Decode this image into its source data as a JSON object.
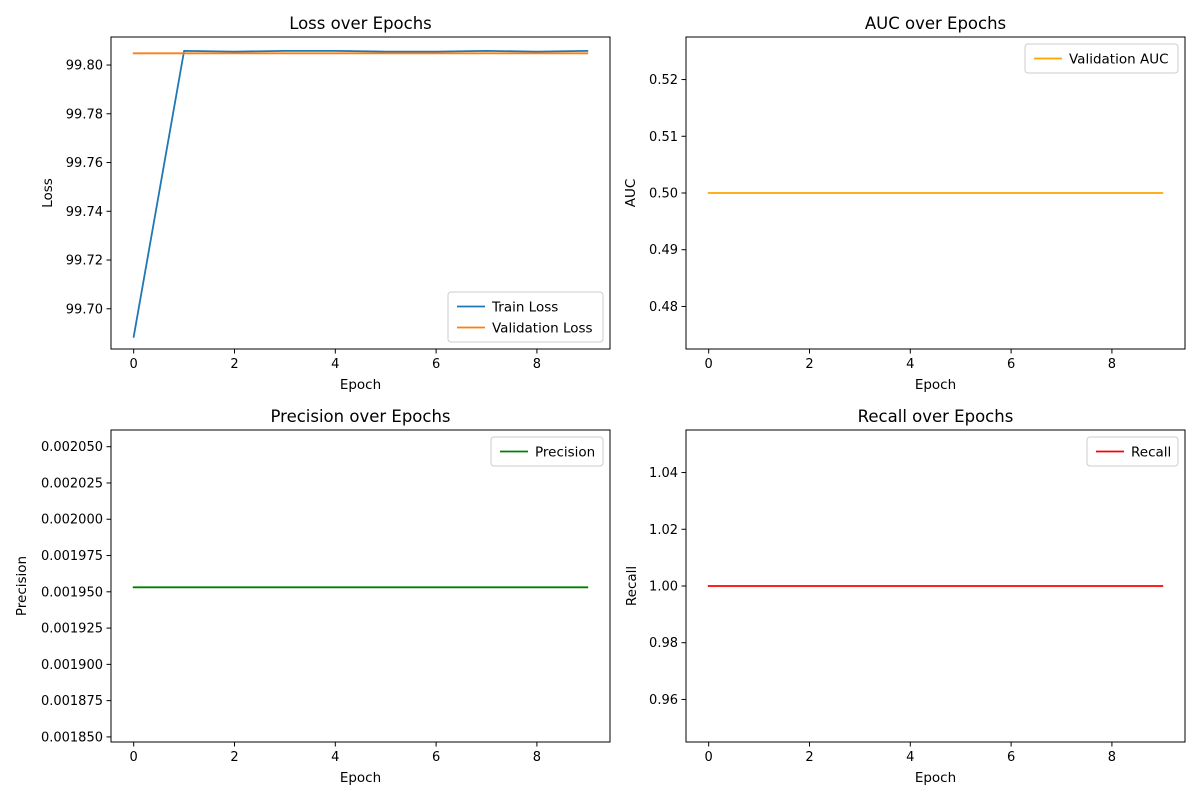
{
  "chart_data": [
    {
      "type": "line",
      "title": "Loss over Epochs",
      "xlabel": "Epoch",
      "ylabel": "Loss",
      "xlim": [
        -0.45,
        9.45
      ],
      "ylim": [
        99.6835,
        99.8115
      ],
      "xticks": [
        0,
        2,
        4,
        6,
        8
      ],
      "xtick_labels": [
        "0",
        "2",
        "4",
        "6",
        "8"
      ],
      "yticks": [
        99.7,
        99.72,
        99.74,
        99.76,
        99.78,
        99.8
      ],
      "ytick_labels": [
        "99.70",
        "99.72",
        "99.74",
        "99.76",
        "99.78",
        "99.80"
      ],
      "legend_position": "lower-right",
      "grid": false,
      "x": [
        0,
        1,
        2,
        3,
        4,
        5,
        6,
        7,
        8,
        9
      ],
      "series": [
        {
          "name": "Train Loss",
          "color": "#1f77b4",
          "values": [
            99.6885,
            99.8058,
            99.8055,
            99.8058,
            99.8058,
            99.8055,
            99.8055,
            99.8058,
            99.8055,
            99.8058
          ]
        },
        {
          "name": "Validation Loss",
          "color": "#ff7f0e",
          "values": [
            99.8048,
            99.8048,
            99.8048,
            99.8048,
            99.8048,
            99.8048,
            99.8048,
            99.8048,
            99.8048,
            99.8048
          ]
        }
      ]
    },
    {
      "type": "line",
      "title": "AUC over Epochs",
      "xlabel": "Epoch",
      "ylabel": "AUC",
      "xlim": [
        -0.45,
        9.45
      ],
      "ylim": [
        0.4725,
        0.5275
      ],
      "xticks": [
        0,
        2,
        4,
        6,
        8
      ],
      "xtick_labels": [
        "0",
        "2",
        "4",
        "6",
        "8"
      ],
      "yticks": [
        0.48,
        0.49,
        0.5,
        0.51,
        0.52
      ],
      "ytick_labels": [
        "0.48",
        "0.49",
        "0.50",
        "0.51",
        "0.52"
      ],
      "legend_position": "upper-right",
      "grid": false,
      "x": [
        0,
        1,
        2,
        3,
        4,
        5,
        6,
        7,
        8,
        9
      ],
      "series": [
        {
          "name": "Validation AUC",
          "color": "#ffa500",
          "values": [
            0.5,
            0.5,
            0.5,
            0.5,
            0.5,
            0.5,
            0.5,
            0.5,
            0.5,
            0.5
          ]
        }
      ]
    },
    {
      "type": "line",
      "title": "Precision over Epochs",
      "xlabel": "Epoch",
      "ylabel": "Precision",
      "xlim": [
        -0.45,
        9.45
      ],
      "ylim": [
        0.0018465,
        0.0020615
      ],
      "xticks": [
        0,
        2,
        4,
        6,
        8
      ],
      "xtick_labels": [
        "0",
        "2",
        "4",
        "6",
        "8"
      ],
      "yticks": [
        0.00185,
        0.001875,
        0.0019,
        0.001925,
        0.00195,
        0.001975,
        0.002,
        0.002025,
        0.00205
      ],
      "ytick_labels": [
        "0.001850",
        "0.001875",
        "0.001900",
        "0.001925",
        "0.001950",
        "0.001975",
        "0.002000",
        "0.002025",
        "0.002050"
      ],
      "legend_position": "upper-right",
      "grid": false,
      "x": [
        0,
        1,
        2,
        3,
        4,
        5,
        6,
        7,
        8,
        9
      ],
      "series": [
        {
          "name": "Precision",
          "color": "#008000",
          "values": [
            0.0019531,
            0.0019531,
            0.0019531,
            0.0019531,
            0.0019531,
            0.0019531,
            0.0019531,
            0.0019531,
            0.0019531,
            0.0019531
          ]
        }
      ]
    },
    {
      "type": "line",
      "title": "Recall over Epochs",
      "xlabel": "Epoch",
      "ylabel": "Recall",
      "xlim": [
        -0.45,
        9.45
      ],
      "ylim": [
        0.945,
        1.055
      ],
      "xticks": [
        0,
        2,
        4,
        6,
        8
      ],
      "xtick_labels": [
        "0",
        "2",
        "4",
        "6",
        "8"
      ],
      "yticks": [
        0.96,
        0.98,
        1.0,
        1.02,
        1.04
      ],
      "ytick_labels": [
        "0.96",
        "0.98",
        "1.00",
        "1.02",
        "1.04"
      ],
      "legend_position": "upper-right",
      "grid": false,
      "x": [
        0,
        1,
        2,
        3,
        4,
        5,
        6,
        7,
        8,
        9
      ],
      "series": [
        {
          "name": "Recall",
          "color": "#ff0000",
          "values": [
            1,
            1,
            1,
            1,
            1,
            1,
            1,
            1,
            1,
            1
          ]
        }
      ]
    }
  ]
}
